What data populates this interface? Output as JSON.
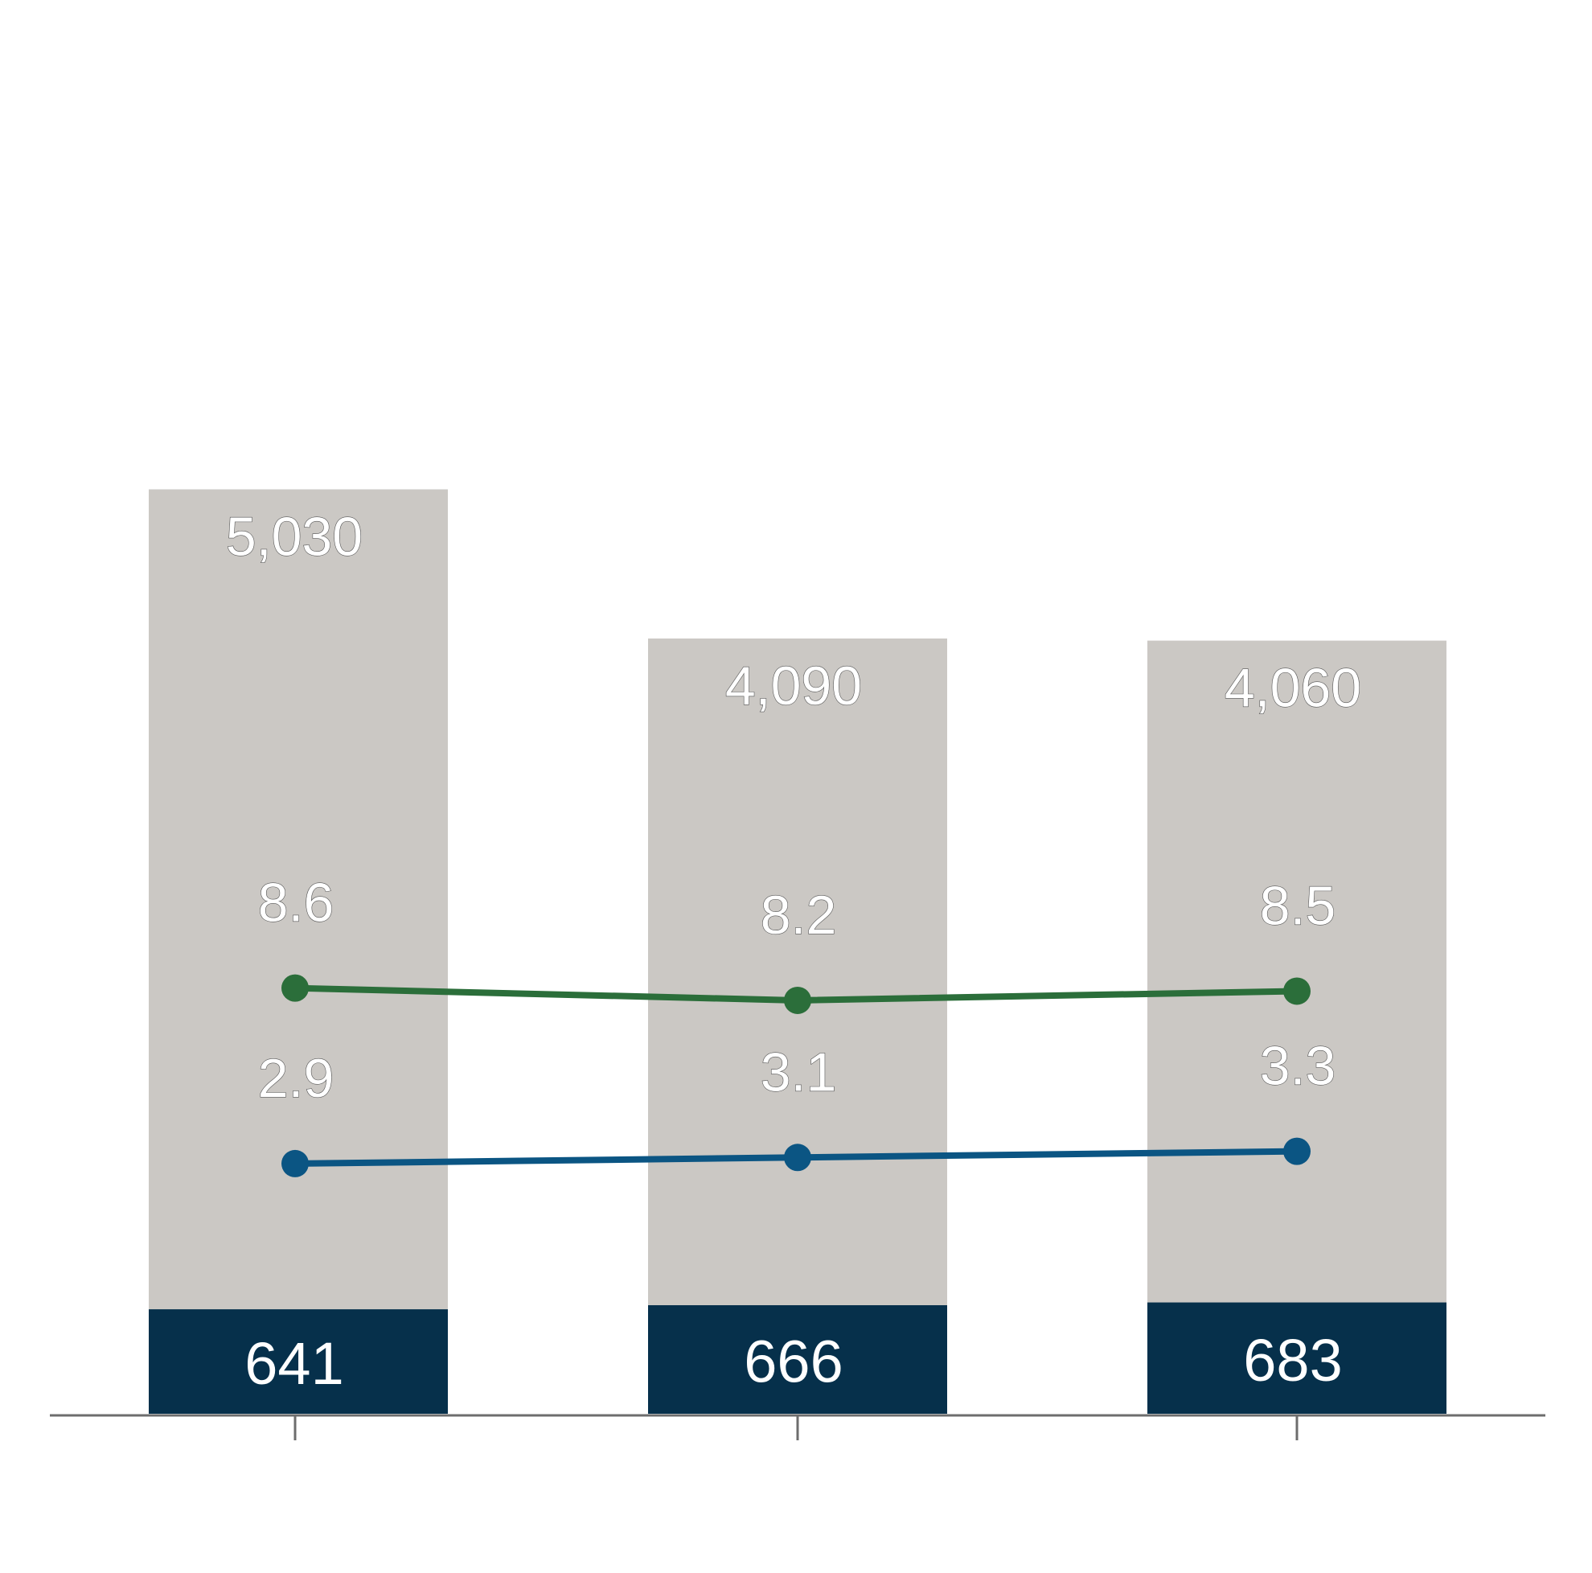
{
  "chart_data": {
    "type": "bar",
    "subtype": "stacked bar with line overlays",
    "categories": [
      "",
      "",
      ""
    ],
    "series": [
      {
        "kind": "bar",
        "values": [
          641,
          666,
          683
        ],
        "color": "#06304b"
      },
      {
        "kind": "bar",
        "values": [
          5030,
          4090,
          4060
        ],
        "color": "#cbc8c4"
      },
      {
        "kind": "line",
        "values": [
          8.6,
          8.2,
          8.5
        ],
        "color": "#2b6e3a"
      },
      {
        "kind": "line",
        "values": [
          2.9,
          3.1,
          3.3
        ],
        "color": "#0b5583"
      }
    ],
    "labels": {
      "bottom_bar": [
        "641",
        "666",
        "683"
      ],
      "top_bar": [
        "5,030",
        "4,090",
        "4,060"
      ],
      "upper_line": [
        "8.6",
        "8.2",
        "8.5"
      ],
      "lower_line": [
        "2.9",
        "3.1",
        "3.3"
      ]
    },
    "title": "",
    "xlabel": "",
    "ylabel": "",
    "grid": false,
    "legend": "none",
    "axis_color": "#6d6d6d"
  }
}
